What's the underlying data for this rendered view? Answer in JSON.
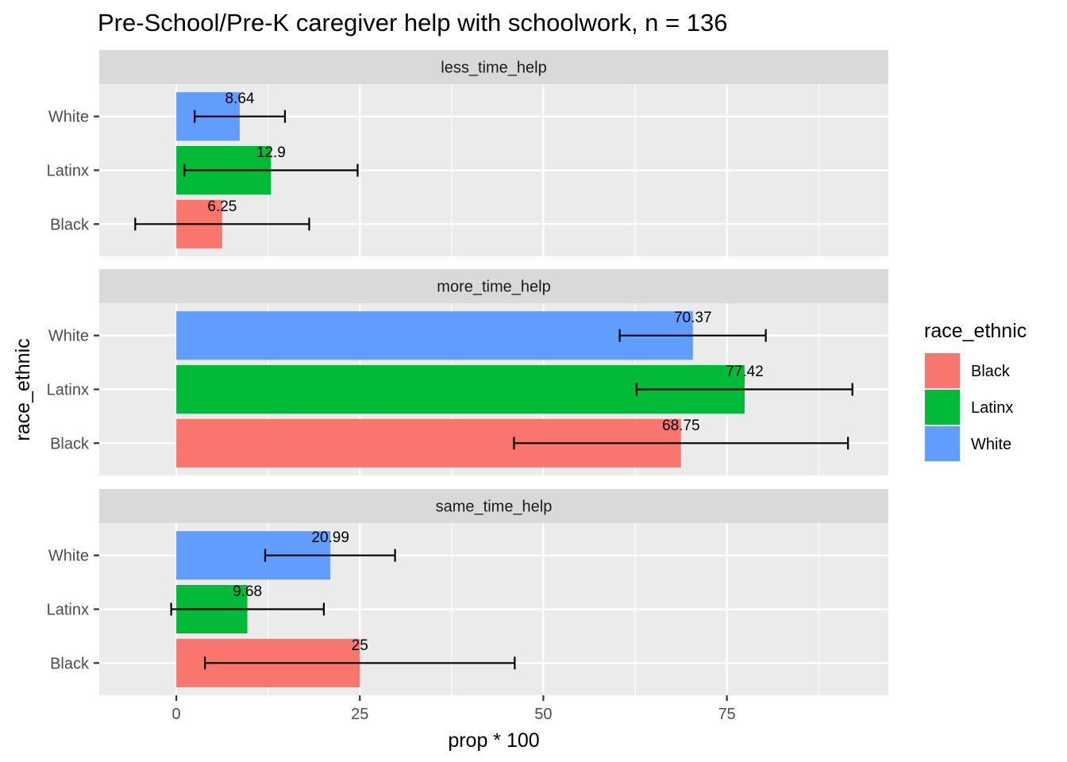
{
  "chart_data": {
    "type": "bar",
    "orientation": "horizontal",
    "title": "Pre-School/Pre-K caregiver help with schoolwork, n = 136",
    "xlabel": "prop * 100",
    "ylabel": "race_ethnic",
    "xlim": [
      -10.5,
      97
    ],
    "x_ticks": [
      0,
      25,
      50,
      75
    ],
    "grid": true,
    "legend": {
      "title": "race_ethnic",
      "position": "right",
      "items": [
        {
          "label": "Black",
          "color": "#F8766D"
        },
        {
          "label": "Latinx",
          "color": "#00BA38"
        },
        {
          "label": "White",
          "color": "#619CFF"
        }
      ]
    },
    "categories": [
      "Black",
      "Latinx",
      "White"
    ],
    "colors": {
      "Black": "#F8766D",
      "Latinx": "#00BA38",
      "White": "#619CFF"
    },
    "facets": [
      {
        "label": "less_time_help",
        "bars": [
          {
            "category": "Black",
            "value": 6.25,
            "label": "6.25",
            "err_low": -5.6,
            "err_high": 18.1
          },
          {
            "category": "Latinx",
            "value": 12.9,
            "label": "12.9",
            "err_low": 1.1,
            "err_high": 24.7
          },
          {
            "category": "White",
            "value": 8.64,
            "label": "8.64",
            "err_low": 2.5,
            "err_high": 14.8
          }
        ]
      },
      {
        "label": "more_time_help",
        "bars": [
          {
            "category": "Black",
            "value": 68.75,
            "label": "68.75",
            "err_low": 46.0,
            "err_high": 91.5
          },
          {
            "category": "Latinx",
            "value": 77.42,
            "label": "77.42",
            "err_low": 62.7,
            "err_high": 92.1
          },
          {
            "category": "White",
            "value": 70.37,
            "label": "70.37",
            "err_low": 60.4,
            "err_high": 80.3
          }
        ]
      },
      {
        "label": "same_time_help",
        "bars": [
          {
            "category": "Black",
            "value": 25,
            "label": "25",
            "err_low": 3.9,
            "err_high": 46.1
          },
          {
            "category": "Latinx",
            "value": 9.68,
            "label": "9.68",
            "err_low": -0.7,
            "err_high": 20.1
          },
          {
            "category": "White",
            "value": 20.99,
            "label": "20.99",
            "err_low": 12.1,
            "err_high": 29.8
          }
        ]
      }
    ]
  }
}
